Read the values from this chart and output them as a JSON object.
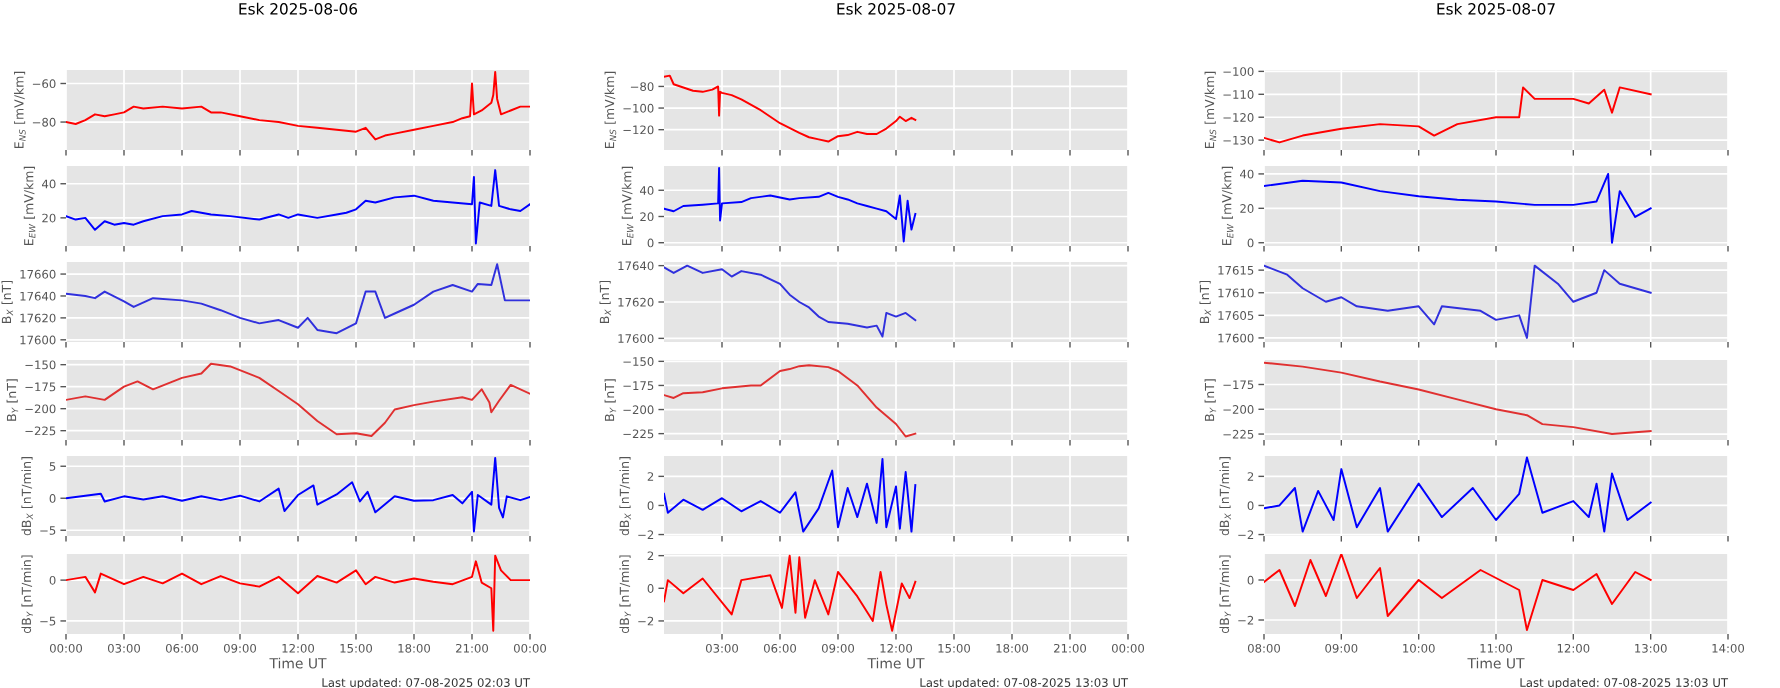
{
  "chart_data": [
    {
      "type": "line",
      "title": "Esk 2025-08-06",
      "ylabel": "E$_{NS}$ [mV/km]",
      "grid": true,
      "tick_labels": "y",
      "xlim": [
        0,
        24
      ],
      "xticks": [
        0,
        3,
        6,
        9,
        12,
        15,
        18,
        21,
        24
      ],
      "ylim": [
        -94.5,
        -53
      ],
      "yticks": [
        -60,
        -80
      ],
      "series": [
        {
          "color": "#ff0000",
          "x": [
            0,
            0.5,
            1,
            1.5,
            2,
            2.5,
            3,
            3.5,
            4,
            5,
            6,
            7,
            7.5,
            8,
            9,
            10,
            11,
            12,
            13,
            14,
            15,
            15.5,
            16,
            16.5,
            17,
            18,
            19,
            20,
            20.5,
            20.9,
            21,
            21.1,
            21.5,
            22,
            22.1,
            22.2,
            22.3,
            22.5,
            23,
            23.5,
            24
          ],
          "values": [
            -80,
            -81,
            -79,
            -76,
            -77,
            -76,
            -75,
            -72,
            -73,
            -72,
            -73,
            -72,
            -75,
            -75,
            -77,
            -79,
            -80,
            -82,
            -83,
            -84,
            -85,
            -83,
            -89,
            -87,
            -86,
            -84,
            -82,
            -80,
            -78,
            -77,
            -60,
            -76,
            -74,
            -70,
            -66,
            -54,
            -68,
            -76,
            -74,
            -72,
            -72
          ]
        }
      ]
    },
    {
      "type": "line",
      "ylabel": "E$_{EW}$ [mV/km]",
      "grid": true,
      "tick_labels": "y",
      "xlim": [
        0,
        24
      ],
      "xticks": [
        0,
        3,
        6,
        9,
        12,
        15,
        18,
        21,
        24
      ],
      "ylim": [
        3.5,
        50.4
      ],
      "yticks": [
        20,
        40
      ],
      "series": [
        {
          "color": "#0000ff",
          "x": [
            0,
            0.5,
            1,
            1.5,
            2,
            2.5,
            3,
            3.5,
            4,
            5,
            6,
            6.5,
            7.5,
            8.5,
            10,
            11,
            11.5,
            12,
            13,
            14,
            14.5,
            15,
            15.5,
            16,
            17,
            18,
            19,
            20,
            21,
            21.1,
            21.2,
            21.4,
            22,
            22.2,
            22.4,
            23,
            23.5,
            24
          ],
          "values": [
            21,
            19,
            20,
            13,
            18,
            16,
            17,
            16,
            18,
            21,
            22,
            24,
            22,
            21,
            19,
            22,
            20,
            22,
            20,
            22,
            23,
            25,
            30,
            29,
            32,
            33,
            30,
            29,
            28,
            44,
            5,
            29,
            27,
            48,
            27,
            25,
            24,
            28
          ]
        }
      ]
    },
    {
      "type": "line",
      "ylabel": "B$_{X}$ [nT]",
      "grid": true,
      "tick_labels": "y",
      "xlim": [
        0,
        24
      ],
      "xticks": [
        0,
        3,
        6,
        9,
        12,
        15,
        18,
        21,
        24
      ],
      "ylim": [
        17598,
        17671
      ],
      "yticks": [
        17600,
        17620,
        17640,
        17660
      ],
      "series": [
        {
          "color": "#3030dd",
          "x": [
            0,
            1,
            1.5,
            2,
            3,
            3.5,
            4.5,
            6,
            7,
            8,
            9,
            10,
            11,
            12,
            12.5,
            13,
            14,
            15,
            15.5,
            16,
            16.5,
            17,
            18,
            19,
            20,
            21,
            21.3,
            22,
            22.3,
            22.7,
            23.5,
            24
          ],
          "values": [
            17642,
            17640,
            17638,
            17644,
            17635,
            17630,
            17638,
            17636,
            17633,
            17627,
            17620,
            17615,
            17618,
            17611,
            17620,
            17609,
            17606,
            17615,
            17644,
            17644,
            17620,
            17624,
            17632,
            17644,
            17650,
            17644,
            17651,
            17650,
            17669,
            17636,
            17636,
            17636
          ]
        }
      ]
    },
    {
      "type": "line",
      "ylabel": "B$_{Y}$ [nT]",
      "grid": true,
      "tick_labels": "y",
      "xlim": [
        0,
        24
      ],
      "xticks": [
        0,
        3,
        6,
        9,
        12,
        15,
        18,
        21,
        24
      ],
      "ylim": [
        -235.6,
        -144.7
      ],
      "yticks": [
        -150,
        -175,
        -200,
        -225
      ],
      "series": [
        {
          "color": "#e03030",
          "x": [
            0,
            1,
            2,
            3,
            3.7,
            4.5,
            6,
            7,
            7.5,
            8.5,
            10,
            11,
            12,
            13,
            14,
            15,
            15.8,
            16.5,
            17,
            18,
            19,
            20.5,
            21,
            21.5,
            21.9,
            22,
            22.4,
            23,
            24
          ],
          "values": [
            -190,
            -186,
            -190,
            -175,
            -169,
            -178,
            -165,
            -160,
            -149,
            -152,
            -165,
            -180,
            -195,
            -214,
            -229,
            -228,
            -231,
            -216,
            -201,
            -196,
            -192,
            -187,
            -190,
            -178,
            -193,
            -204,
            -191,
            -173,
            -183
          ]
        }
      ]
    },
    {
      "type": "line",
      "ylabel": "dB$_{X}$ [nT/min]",
      "grid": true,
      "tick_labels": "y",
      "xlim": [
        0,
        24
      ],
      "xticks": [
        0,
        3,
        6,
        9,
        12,
        15,
        18,
        21,
        24
      ],
      "ylim": [
        -5.9,
        6.6
      ],
      "yticks": [
        5,
        0,
        -5
      ],
      "series": [
        {
          "color": "#0000ff",
          "x": [
            0,
            1,
            1.8,
            2,
            3,
            4,
            5,
            6,
            7,
            8,
            9,
            10,
            11,
            11.3,
            12,
            12.8,
            13,
            14,
            14.8,
            15.2,
            15.6,
            16,
            17,
            18,
            19,
            20,
            20.5,
            21,
            21.1,
            21.3,
            22,
            22.2,
            22.4,
            22.6,
            22.8,
            23.5,
            24
          ],
          "values": [
            0,
            0.4,
            0.7,
            -0.5,
            0.3,
            -0.2,
            0.3,
            -0.4,
            0.3,
            -0.3,
            0.4,
            -0.5,
            1.5,
            -2,
            0.5,
            2,
            -1,
            0.6,
            2.5,
            -0.5,
            1,
            -2.2,
            0.3,
            -0.4,
            -0.3,
            0.5,
            -0.8,
            1,
            -5.2,
            0.5,
            -1,
            6.3,
            -1.5,
            -3,
            0.3,
            -0.3,
            0.2
          ]
        }
      ]
    },
    {
      "type": "line",
      "ylabel": "dB$_{Y}$ [nT/min]",
      "xlabel": "Time UT",
      "annotations": [
        "Last updated: 07-08-2025 02:03 UT"
      ],
      "grid": true,
      "xlim": [
        0,
        24
      ],
      "xticks": [
        {
          "value": 0,
          "label": "00:00"
        },
        {
          "value": 3,
          "label": "03:00"
        },
        {
          "value": 6,
          "label": "06:00"
        },
        {
          "value": 9,
          "label": "09:00"
        },
        {
          "value": 12,
          "label": "12:00"
        },
        {
          "value": 15,
          "label": "15:00"
        },
        {
          "value": 18,
          "label": "18:00"
        },
        {
          "value": 21,
          "label": "21:00"
        },
        {
          "value": 24,
          "label": "00:00"
        }
      ],
      "ylim": [
        -6.6,
        3.2
      ],
      "yticks": [
        0,
        -5
      ],
      "series": [
        {
          "color": "#ff0000",
          "x": [
            0,
            1,
            1.5,
            1.8,
            3,
            4,
            5,
            6,
            7,
            8,
            9,
            10,
            11,
            12,
            13,
            14,
            15,
            15.5,
            16,
            17,
            18,
            19,
            20,
            21,
            21.2,
            21.5,
            22,
            22.1,
            22.2,
            22.5,
            23,
            24
          ],
          "values": [
            0,
            0.4,
            -1.5,
            0.8,
            -0.5,
            0.4,
            -0.4,
            0.8,
            -0.5,
            0.5,
            -0.4,
            -0.8,
            0.4,
            -1.6,
            0.5,
            -0.3,
            1.2,
            -0.5,
            0.4,
            -0.3,
            0.2,
            -0.2,
            -0.5,
            0.4,
            2.3,
            -0.3,
            -1,
            -6.2,
            3,
            1.2,
            0,
            0
          ]
        }
      ]
    },
    {
      "type": "line",
      "title": "Esk 2025-08-07",
      "ylabel": "E$_{NS}$ [mV/km]",
      "grid": true,
      "tick_labels": "y",
      "xlim": [
        0,
        24
      ],
      "xticks": [
        3,
        6,
        9,
        12,
        15,
        18,
        21,
        24
      ],
      "ylim": [
        -138.8,
        -64.8
      ],
      "yticks": [
        -80,
        -100,
        -120
      ],
      "series": [
        {
          "color": "#ff0000",
          "x": [
            0,
            0.3,
            0.5,
            1,
            1.5,
            2,
            2.5,
            2.8,
            2.85,
            2.9,
            3,
            3.5,
            4,
            5,
            6,
            7,
            7.5,
            8,
            8.5,
            9,
            9.5,
            10,
            10.5,
            11,
            11.5,
            12,
            12.2,
            12.5,
            12.8,
            13
          ],
          "values": [
            -71,
            -70,
            -78,
            -81,
            -84,
            -85,
            -83,
            -80,
            -107,
            -85,
            -86,
            -88,
            -92,
            -102,
            -114,
            -123,
            -127,
            -129,
            -131,
            -126,
            -125,
            -122,
            -124,
            -124,
            -119,
            -112,
            -108,
            -112,
            -109,
            -111
          ]
        }
      ]
    },
    {
      "type": "line",
      "ylabel": "E$_{EW}$ [mV/km]",
      "grid": true,
      "tick_labels": "y",
      "xlim": [
        0,
        24
      ],
      "xticks": [
        3,
        6,
        9,
        12,
        15,
        18,
        21,
        24
      ],
      "ylim": [
        -2.5,
        58.5
      ],
      "yticks": [
        0,
        20,
        40
      ],
      "series": [
        {
          "color": "#0000ff",
          "x": [
            0,
            0.5,
            1,
            2,
            2.8,
            2.85,
            2.9,
            3,
            4,
            4.5,
            5.5,
            6.5,
            7,
            8,
            8.5,
            9,
            9.5,
            10,
            10.5,
            11,
            11.5,
            12,
            12.2,
            12.4,
            12.6,
            12.8,
            13
          ],
          "values": [
            26,
            24,
            28,
            29,
            30,
            57,
            17,
            30,
            31,
            34,
            36,
            33,
            34,
            35,
            38,
            35,
            33,
            30,
            28,
            26,
            24,
            18,
            36,
            1,
            32,
            10,
            22
          ]
        }
      ]
    },
    {
      "type": "line",
      "ylabel": "B$_{X}$ [nT]",
      "grid": true,
      "tick_labels": "y",
      "xlim": [
        0,
        24
      ],
      "xticks": [
        3,
        6,
        9,
        12,
        15,
        18,
        21,
        24
      ],
      "ylim": [
        17598,
        17642
      ],
      "yticks": [
        17600,
        17620,
        17640
      ],
      "series": [
        {
          "color": "#3030dd",
          "x": [
            0,
            0.5,
            1.2,
            2,
            3,
            3.5,
            4,
            5,
            6,
            6.5,
            7,
            7.5,
            8,
            8.5,
            9.5,
            10.5,
            11,
            11.3,
            11.5,
            12,
            12.5,
            13
          ],
          "values": [
            17639,
            17636,
            17640,
            17636,
            17638,
            17634,
            17637,
            17635,
            17630,
            17624,
            17620,
            17617,
            17612,
            17609,
            17608,
            17606,
            17607,
            17601,
            17614,
            17612,
            17614,
            17610
          ]
        }
      ]
    },
    {
      "type": "line",
      "ylabel": "B$_{Y}$ [nT]",
      "grid": true,
      "tick_labels": "y",
      "xlim": [
        0,
        24
      ],
      "xticks": [
        3,
        6,
        9,
        12,
        15,
        18,
        21,
        24
      ],
      "ylim": [
        -231.6,
        -148.6
      ],
      "yticks": [
        -150,
        -175,
        -200,
        -225
      ],
      "series": [
        {
          "color": "#e03030",
          "x": [
            0,
            0.5,
            1,
            2,
            3,
            4.5,
            5,
            6,
            6.5,
            7,
            7.5,
            8.5,
            9,
            10,
            11,
            12,
            12.5,
            13
          ],
          "values": [
            -185,
            -188,
            -183,
            -182,
            -178,
            -175,
            -175,
            -160,
            -158,
            -155,
            -154,
            -156,
            -160,
            -175,
            -198,
            -215,
            -228,
            -225
          ]
        }
      ]
    },
    {
      "type": "line",
      "ylabel": "dB$_{X}$ [nT/min]",
      "grid": true,
      "tick_labels": "y",
      "xlim": [
        0,
        24
      ],
      "xticks": [
        3,
        6,
        9,
        12,
        15,
        18,
        21,
        24
      ],
      "ylim": [
        -2.1,
        3.4
      ],
      "yticks": [
        -2,
        0,
        2
      ],
      "series": [
        {
          "color": "#0000ff",
          "x": [
            0,
            0.2,
            1,
            2,
            3,
            4,
            5,
            6,
            6.8,
            7.2,
            8,
            8.7,
            9,
            9.5,
            10,
            10.5,
            11,
            11.3,
            11.5,
            12,
            12.2,
            12.5,
            12.8,
            13
          ],
          "values": [
            0.8,
            -0.5,
            0.4,
            -0.3,
            0.5,
            -0.4,
            0.3,
            -0.5,
            0.9,
            -1.8,
            -0.2,
            2.4,
            -1.5,
            1.2,
            -0.8,
            1.5,
            -1.2,
            3.2,
            -1.5,
            1.3,
            -1.6,
            2.3,
            -1.8,
            1.4
          ]
        }
      ]
    },
    {
      "type": "line",
      "ylabel": "dB$_{Y}$ [nT/min]",
      "xlabel": "Time UT",
      "annotations": [
        "Last updated: 07-08-2025 13:03 UT"
      ],
      "grid": true,
      "xlim": [
        0,
        24
      ],
      "xticks": [
        {
          "value": 3,
          "label": "03:00"
        },
        {
          "value": 6,
          "label": "06:00"
        },
        {
          "value": 9,
          "label": "09:00"
        },
        {
          "value": 12,
          "label": "12:00"
        },
        {
          "value": 15,
          "label": "15:00"
        },
        {
          "value": 18,
          "label": "18:00"
        },
        {
          "value": 21,
          "label": "21:00"
        },
        {
          "value": 24,
          "label": "00:00"
        }
      ],
      "ylim": [
        -2.8,
        2.1
      ],
      "yticks": [
        -2,
        0,
        2
      ],
      "series": [
        {
          "color": "#ff0000",
          "x": [
            0,
            0.2,
            1,
            2,
            3.5,
            4,
            5.5,
            6.1,
            6.5,
            6.8,
            7,
            7.3,
            7.8,
            8.5,
            9,
            10,
            10.8,
            11.2,
            11.5,
            11.8,
            12.3,
            12.7,
            13
          ],
          "values": [
            -0.8,
            0.5,
            -0.3,
            0.6,
            -1.6,
            0.5,
            0.8,
            -1.2,
            2,
            -1.5,
            1.9,
            -1.8,
            0.5,
            -1.6,
            1,
            -0.5,
            -2,
            1,
            -1,
            -2.6,
            0.3,
            -0.6,
            0.4
          ]
        }
      ]
    },
    {
      "type": "line",
      "title": "Esk 2025-08-07",
      "ylabel": "E$_{NS}$ [mV/km]",
      "grid": true,
      "tick_labels": "y",
      "xlim": [
        8,
        14
      ],
      "xticks": [
        8,
        9,
        10,
        11,
        12,
        13,
        14
      ],
      "ylim": [
        -134.3,
        -99.4
      ],
      "yticks": [
        -100,
        -110,
        -120,
        -130
      ],
      "series": [
        {
          "color": "#ff0000",
          "x": [
            8,
            8.2,
            8.5,
            9,
            9.5,
            10,
            10.2,
            10.5,
            11,
            11.3,
            11.35,
            11.5,
            12,
            12.2,
            12.4,
            12.5,
            12.6,
            13
          ],
          "values": [
            -129,
            -131,
            -128,
            -125,
            -123,
            -124,
            -128,
            -123,
            -120,
            -120,
            -107,
            -112,
            -112,
            -114,
            -108,
            -118,
            -107,
            -110
          ]
        }
      ]
    },
    {
      "type": "line",
      "ylabel": "E$_{EW}$ [mV/km]",
      "grid": true,
      "tick_labels": "y",
      "xlim": [
        8,
        14
      ],
      "xticks": [
        8,
        9,
        10,
        11,
        12,
        13,
        14
      ],
      "ylim": [
        -1.9,
        44.6
      ],
      "yticks": [
        0,
        20,
        40
      ],
      "series": [
        {
          "color": "#0000ff",
          "x": [
            8,
            8.5,
            9,
            9.5,
            10,
            10.5,
            11,
            11.5,
            12,
            12.3,
            12.45,
            12.5,
            12.6,
            12.8,
            13
          ],
          "values": [
            33,
            36,
            35,
            30,
            27,
            25,
            24,
            22,
            22,
            24,
            40,
            0,
            30,
            15,
            20
          ]
        }
      ]
    },
    {
      "type": "line",
      "ylabel": "B$_{X}$ [nT]",
      "grid": true,
      "tick_labels": "y",
      "xlim": [
        8,
        14
      ],
      "xticks": [
        8,
        9,
        10,
        11,
        12,
        13,
        14
      ],
      "ylim": [
        17599.1,
        17616.8
      ],
      "yticks": [
        17600,
        17605,
        17610,
        17615
      ],
      "series": [
        {
          "color": "#3030dd",
          "x": [
            8,
            8.3,
            8.5,
            8.8,
            9,
            9.2,
            9.6,
            10,
            10.2,
            10.3,
            10.8,
            11,
            11.3,
            11.4,
            11.5,
            11.8,
            12,
            12.3,
            12.4,
            12.6,
            12.8,
            13
          ],
          "values": [
            17616,
            17614,
            17611,
            17608,
            17609,
            17607,
            17606,
            17607,
            17603,
            17607,
            17606,
            17604,
            17605,
            17600,
            17616,
            17612,
            17608,
            17610,
            17615,
            17612,
            17611,
            17610
          ]
        }
      ]
    },
    {
      "type": "line",
      "ylabel": "B$_{Y}$ [nT]",
      "grid": true,
      "tick_labels": "y",
      "xlim": [
        8,
        14
      ],
      "xticks": [
        8,
        9,
        10,
        11,
        12,
        13,
        14
      ],
      "ylim": [
        -231,
        -150.3
      ],
      "yticks": [
        -175,
        -200,
        -225
      ],
      "series": [
        {
          "color": "#e03030",
          "x": [
            8,
            8.5,
            9,
            9.5,
            10,
            10.5,
            11,
            11.4,
            11.6,
            12,
            12.5,
            13
          ],
          "values": [
            -153,
            -157,
            -163,
            -172,
            -180,
            -190,
            -200,
            -206,
            -215,
            -218,
            -225,
            -222
          ]
        }
      ]
    },
    {
      "type": "line",
      "ylabel": "dB$_{X}$ [nT/min]",
      "grid": true,
      "tick_labels": "y",
      "xlim": [
        8,
        14
      ],
      "xticks": [
        8,
        9,
        10,
        11,
        12,
        13,
        14
      ],
      "ylim": [
        -2.1,
        3.4
      ],
      "yticks": [
        -2,
        0,
        2
      ],
      "series": [
        {
          "color": "#0000ff",
          "x": [
            8,
            8.2,
            8.4,
            8.5,
            8.7,
            8.9,
            9,
            9.2,
            9.5,
            9.6,
            10,
            10.3,
            10.7,
            11,
            11.3,
            11.4,
            11.6,
            12,
            12.2,
            12.3,
            12.4,
            12.5,
            12.7,
            13
          ],
          "values": [
            -0.2,
            0,
            1.2,
            -1.8,
            1,
            -1,
            2.5,
            -1.5,
            1.2,
            -1.8,
            1.5,
            -0.8,
            1.2,
            -1,
            0.8,
            3.3,
            -0.5,
            0.3,
            -0.8,
            1.5,
            -1.8,
            2.2,
            -1,
            0.2
          ]
        }
      ]
    },
    {
      "type": "line",
      "ylabel": "dB$_{Y}$ [nT/min]",
      "xlabel": "Time UT",
      "annotations": [
        "Last updated: 07-08-2025 13:03 UT"
      ],
      "grid": true,
      "xlim": [
        8,
        14
      ],
      "xticks": [
        {
          "value": 8,
          "label": "08:00"
        },
        {
          "value": 9,
          "label": "09:00"
        },
        {
          "value": 10,
          "label": "10:00"
        },
        {
          "value": 11,
          "label": "11:00"
        },
        {
          "value": 12,
          "label": "12:00"
        },
        {
          "value": 13,
          "label": "13:00"
        },
        {
          "value": 14,
          "label": "14:00"
        }
      ],
      "ylim": [
        -2.7,
        1.3
      ],
      "yticks": [
        -2,
        0
      ],
      "series": [
        {
          "color": "#ff0000",
          "x": [
            8,
            8.2,
            8.4,
            8.6,
            8.8,
            9,
            9.2,
            9.5,
            9.6,
            10,
            10.3,
            10.8,
            11.3,
            11.4,
            11.6,
            12,
            12.3,
            12.5,
            12.8,
            13
          ],
          "values": [
            -0.1,
            0.5,
            -1.3,
            1,
            -0.8,
            1.3,
            -0.9,
            0.6,
            -1.8,
            0,
            -0.9,
            0.5,
            -0.5,
            -2.5,
            0,
            -0.5,
            0.3,
            -1.2,
            0.4,
            0
          ]
        }
      ]
    }
  ]
}
